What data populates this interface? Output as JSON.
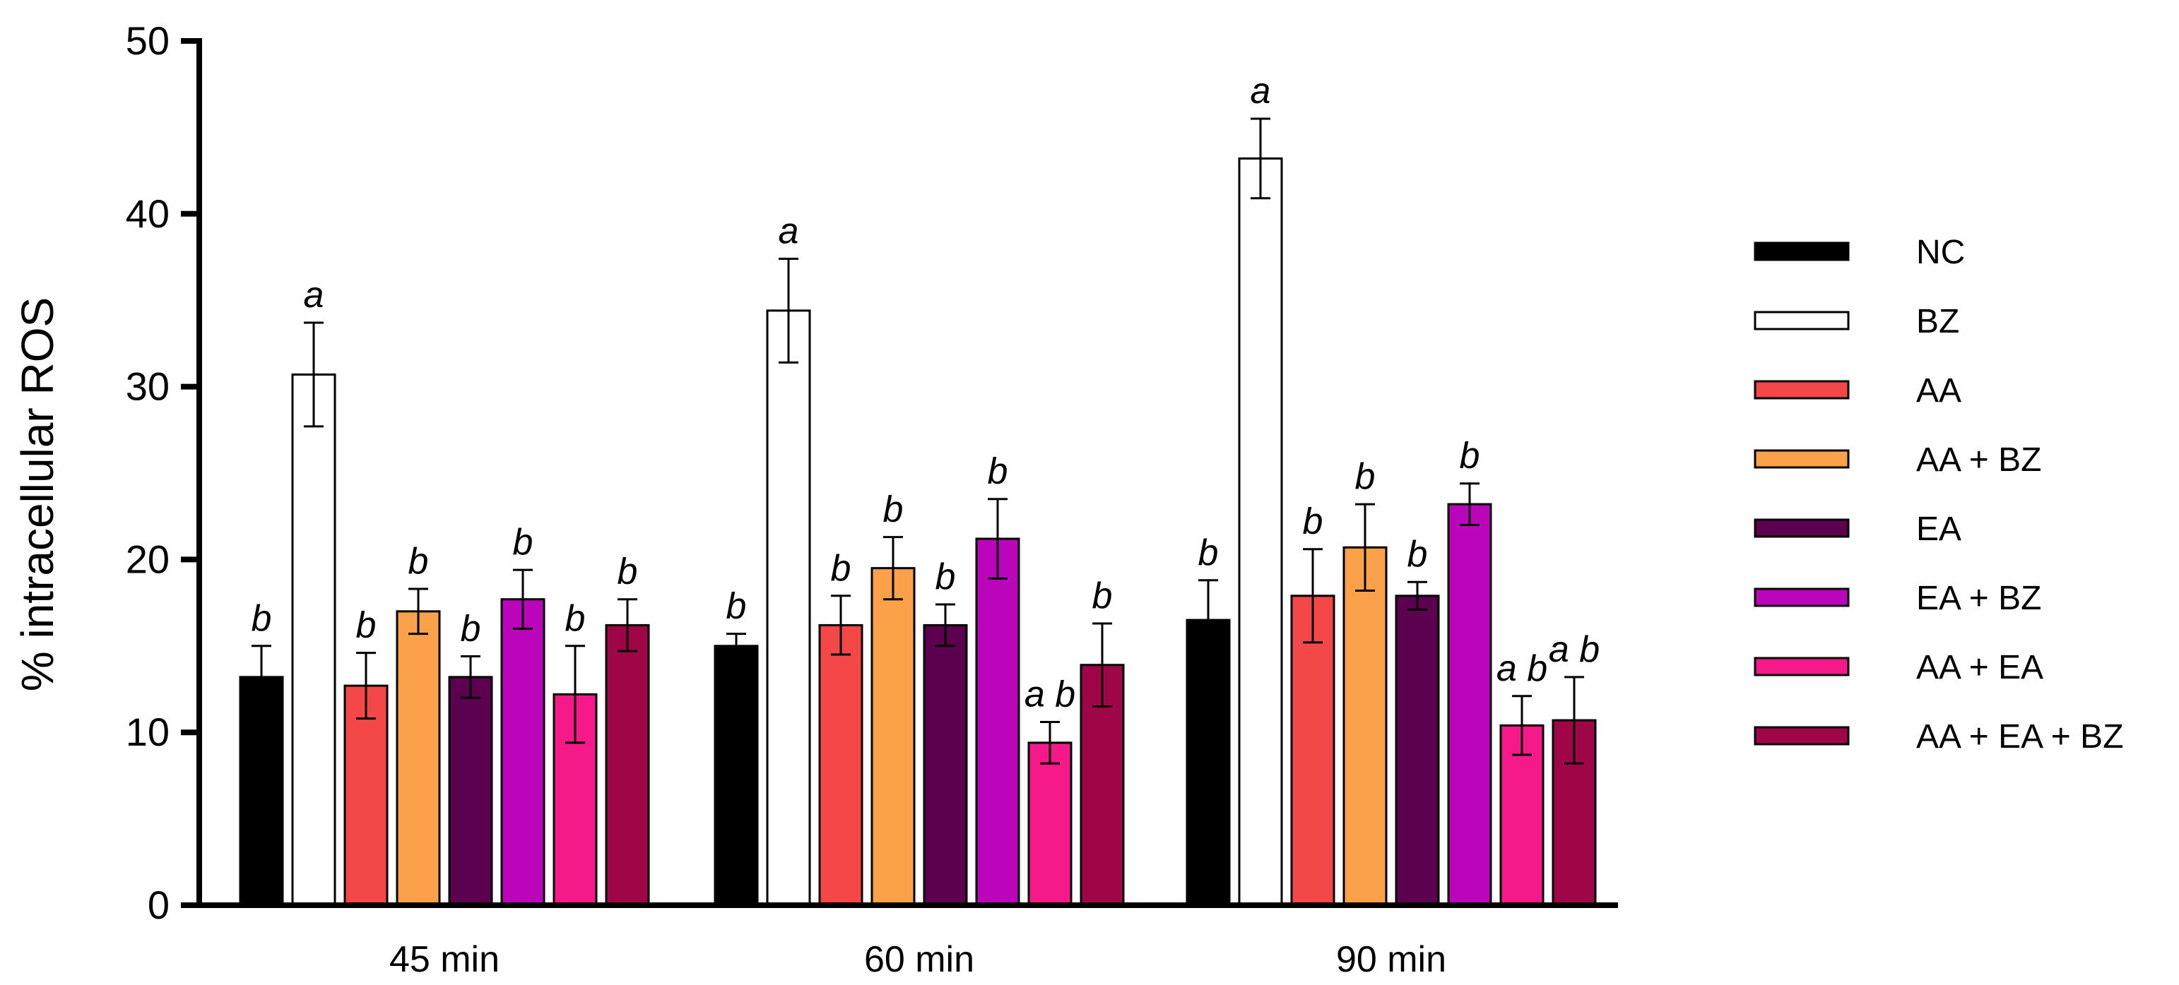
{
  "chart_data": {
    "type": "bar",
    "ylabel": "% intracellular ROS",
    "xlabel": "",
    "ylim": [
      0,
      50
    ],
    "yticks": [
      0,
      10,
      20,
      30,
      40,
      50
    ],
    "categories": [
      "45 min",
      "60 min",
      "90 min"
    ],
    "legend_position": "right",
    "series": [
      {
        "name": "NC",
        "color": "#000000",
        "values": [
          13.2,
          15.0,
          16.5
        ],
        "errors": [
          1.8,
          0.7,
          2.3
        ],
        "labels": [
          "b",
          "b",
          "b"
        ]
      },
      {
        "name": "BZ",
        "color": "#ffffff",
        "values": [
          30.7,
          34.4,
          43.2
        ],
        "errors": [
          3.0,
          3.0,
          2.3
        ],
        "labels": [
          "a",
          "a",
          "a"
        ]
      },
      {
        "name": "AA",
        "color": "#f44848",
        "values": [
          12.7,
          16.2,
          17.9
        ],
        "errors": [
          1.9,
          1.7,
          2.7
        ],
        "labels": [
          "b",
          "b",
          "b"
        ]
      },
      {
        "name": "AA + BZ",
        "color": "#fba14a",
        "values": [
          17.0,
          19.5,
          20.7
        ],
        "errors": [
          1.3,
          1.8,
          2.5
        ],
        "labels": [
          "b",
          "b",
          "b"
        ]
      },
      {
        "name": "EA",
        "color": "#5c0050",
        "values": [
          13.2,
          16.2,
          17.9
        ],
        "errors": [
          1.2,
          1.2,
          0.8
        ],
        "labels": [
          "b",
          "b",
          "b"
        ]
      },
      {
        "name": "EA + BZ",
        "color": "#bb05bb",
        "values": [
          17.7,
          21.2,
          23.2
        ],
        "errors": [
          1.7,
          2.3,
          1.2
        ],
        "labels": [
          "b",
          "b",
          "b"
        ]
      },
      {
        "name": "AA + EA",
        "color": "#f5198a",
        "values": [
          12.2,
          9.4,
          10.4
        ],
        "errors": [
          2.8,
          1.2,
          1.7
        ],
        "labels": [
          "b",
          "a b",
          "a b"
        ]
      },
      {
        "name": "AA + EA + BZ",
        "color": "#9e0648",
        "values": [
          16.2,
          13.9,
          10.7
        ],
        "errors": [
          1.5,
          2.4,
          2.5
        ],
        "labels": [
          "b",
          "b",
          "a b"
        ]
      }
    ]
  }
}
